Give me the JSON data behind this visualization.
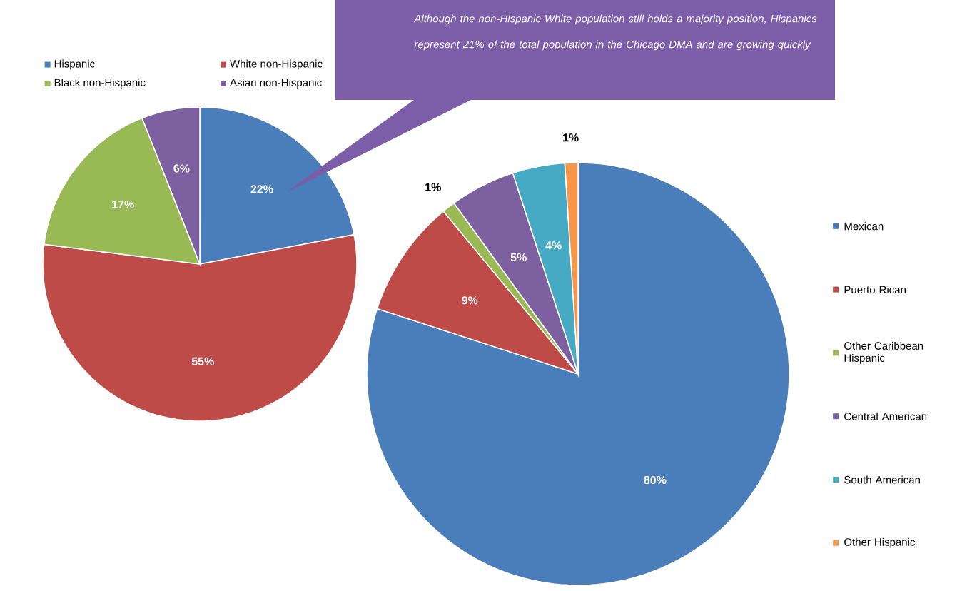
{
  "chart_data": [
    {
      "type": "pie",
      "categories": [
        "Hispanic",
        "White non-Hispanic",
        "Black non-Hispanic",
        "Asian non-Hispanic"
      ],
      "values": [
        22,
        55,
        17,
        6
      ],
      "value_labels": [
        "22%",
        "55%",
        "17%",
        "6%"
      ],
      "colors": [
        "#4a7ebb",
        "#be4b48",
        "#98b954",
        "#7d60a0"
      ],
      "legend": "top",
      "annotations": [
        "Although the non-Hispanic White population still holds a majority position, Hispanics represent 21% of the total population in the Chicago DMA and are growing quickly"
      ]
    },
    {
      "type": "pie",
      "categories": [
        "Mexican",
        "Puerto Rican",
        "Other Caribbean Hispanic",
        "Central American",
        "South American",
        "Other Hispanic"
      ],
      "values": [
        80,
        9,
        1,
        5,
        4,
        1
      ],
      "value_labels": [
        "80%",
        "9%",
        "1%",
        "5%",
        "4%",
        "1%"
      ],
      "colors": [
        "#4a7ebb",
        "#be4b48",
        "#98b954",
        "#7d60a0",
        "#46aac5",
        "#f79646"
      ],
      "legend": "right"
    }
  ]
}
